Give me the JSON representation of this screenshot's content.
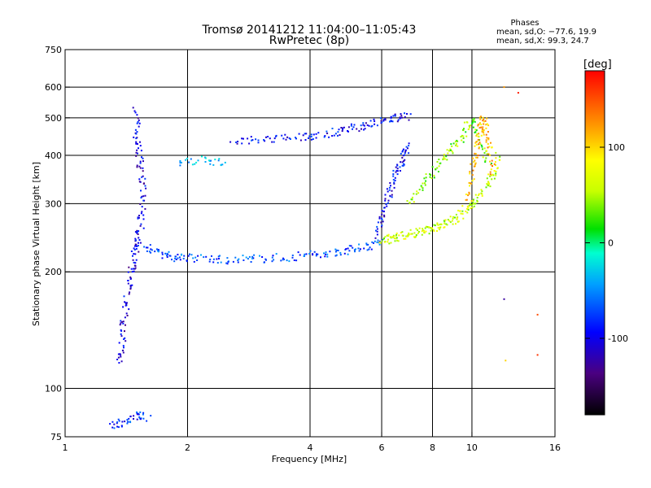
{
  "chart_data": {
    "type": "scatter",
    "title": "Tromsø 20141212 11:04:00–11:05:43",
    "subtitle": "RwPretec (8p)",
    "xlabel": "Frequency [MHz]",
    "ylabel": "Stationary phase Virtual Height [km]",
    "x_scale": "log",
    "y_scale": "log",
    "xlim": [
      1,
      16
    ],
    "ylim": [
      75,
      750
    ],
    "x_ticks": [
      1,
      2,
      4,
      6,
      8,
      10,
      16
    ],
    "y_ticks": [
      75,
      100,
      200,
      300,
      400,
      500,
      600,
      750
    ],
    "grid": true,
    "phase_stats": {
      "title": "Phases",
      "o_line": "mean, sd,O: −77.6, 19.9",
      "x_line": "mean, sd,X:  99.3, 24.7"
    },
    "colorbar": {
      "label": "[deg]",
      "range": [
        -180,
        180
      ],
      "ticks": [
        100,
        0,
        -100
      ],
      "colormap": "rainbow"
    },
    "traces": [
      {
        "x": [
          1.5,
          1.5,
          1.52,
          1.55,
          1.55,
          1.53,
          1.5,
          1.48,
          1.45,
          1.42,
          1.4,
          1.38,
          1.35
        ],
        "y": [
          520,
          450,
          400,
          350,
          300,
          260,
          240,
          220,
          200,
          175,
          150,
          130,
          115
        ],
        "phase": -110
      },
      {
        "x": [
          1.58,
          1.7,
          1.85,
          2.0,
          2.3,
          2.6,
          3.0,
          3.5,
          4.0,
          4.5,
          5.0,
          5.5,
          6.0
        ],
        "y": [
          235,
          222,
          218,
          217,
          216,
          215,
          216,
          218,
          221,
          224,
          228,
          233,
          240
        ],
        "phase": -75
      },
      {
        "x": [
          6.0,
          6.3,
          6.6,
          7.0,
          7.4,
          7.8,
          8.2,
          8.7,
          9.2,
          9.7,
          10.2,
          10.8,
          11.3,
          11.6
        ],
        "y": [
          240,
          243,
          246,
          250,
          253,
          257,
          262,
          268,
          276,
          290,
          305,
          330,
          360,
          400
        ],
        "phase": 60
      },
      {
        "x": [
          2.6,
          3.0,
          3.5,
          4.0,
          4.5,
          5.0,
          5.5,
          6.0,
          6.5,
          7.0
        ],
        "y": [
          433,
          438,
          443,
          448,
          458,
          468,
          478,
          488,
          498,
          505
        ],
        "phase": -100
      },
      {
        "x": [
          5.8,
          6.0,
          6.2,
          6.4,
          6.6,
          6.8,
          7.0
        ],
        "y": [
          250,
          280,
          310,
          340,
          370,
          400,
          430
        ],
        "phase": -100
      },
      {
        "x": [
          7.0,
          7.5,
          8.0,
          8.5,
          9.0,
          9.5,
          10.0,
          10.5,
          11.0
        ],
        "y": [
          300,
          330,
          360,
          390,
          420,
          450,
          500,
          430,
          380
        ],
        "phase": 40
      },
      {
        "x": [
          9.8,
          10.0,
          10.2,
          10.4,
          10.6,
          10.8,
          11.0,
          11.3
        ],
        "y": [
          300,
          350,
          400,
          450,
          500,
          470,
          420,
          360
        ],
        "phase": 110
      },
      {
        "x": [
          1.3,
          1.4,
          1.5,
          1.6
        ],
        "y": [
          80,
          82,
          85,
          84
        ],
        "phase": -90
      },
      {
        "x": [
          1.9,
          2.2,
          2.5
        ],
        "y": [
          385,
          390,
          380
        ],
        "phase": -40
      }
    ],
    "points": [
      {
        "x": 12.0,
        "y": 600,
        "phase": 120
      },
      {
        "x": 12.0,
        "y": 170,
        "phase": -130
      },
      {
        "x": 12.1,
        "y": 118,
        "phase": 100
      },
      {
        "x": 14.5,
        "y": 155,
        "phase": 150
      },
      {
        "x": 14.5,
        "y": 122,
        "phase": 160
      },
      {
        "x": 13.0,
        "y": 580,
        "phase": 170
      }
    ]
  }
}
